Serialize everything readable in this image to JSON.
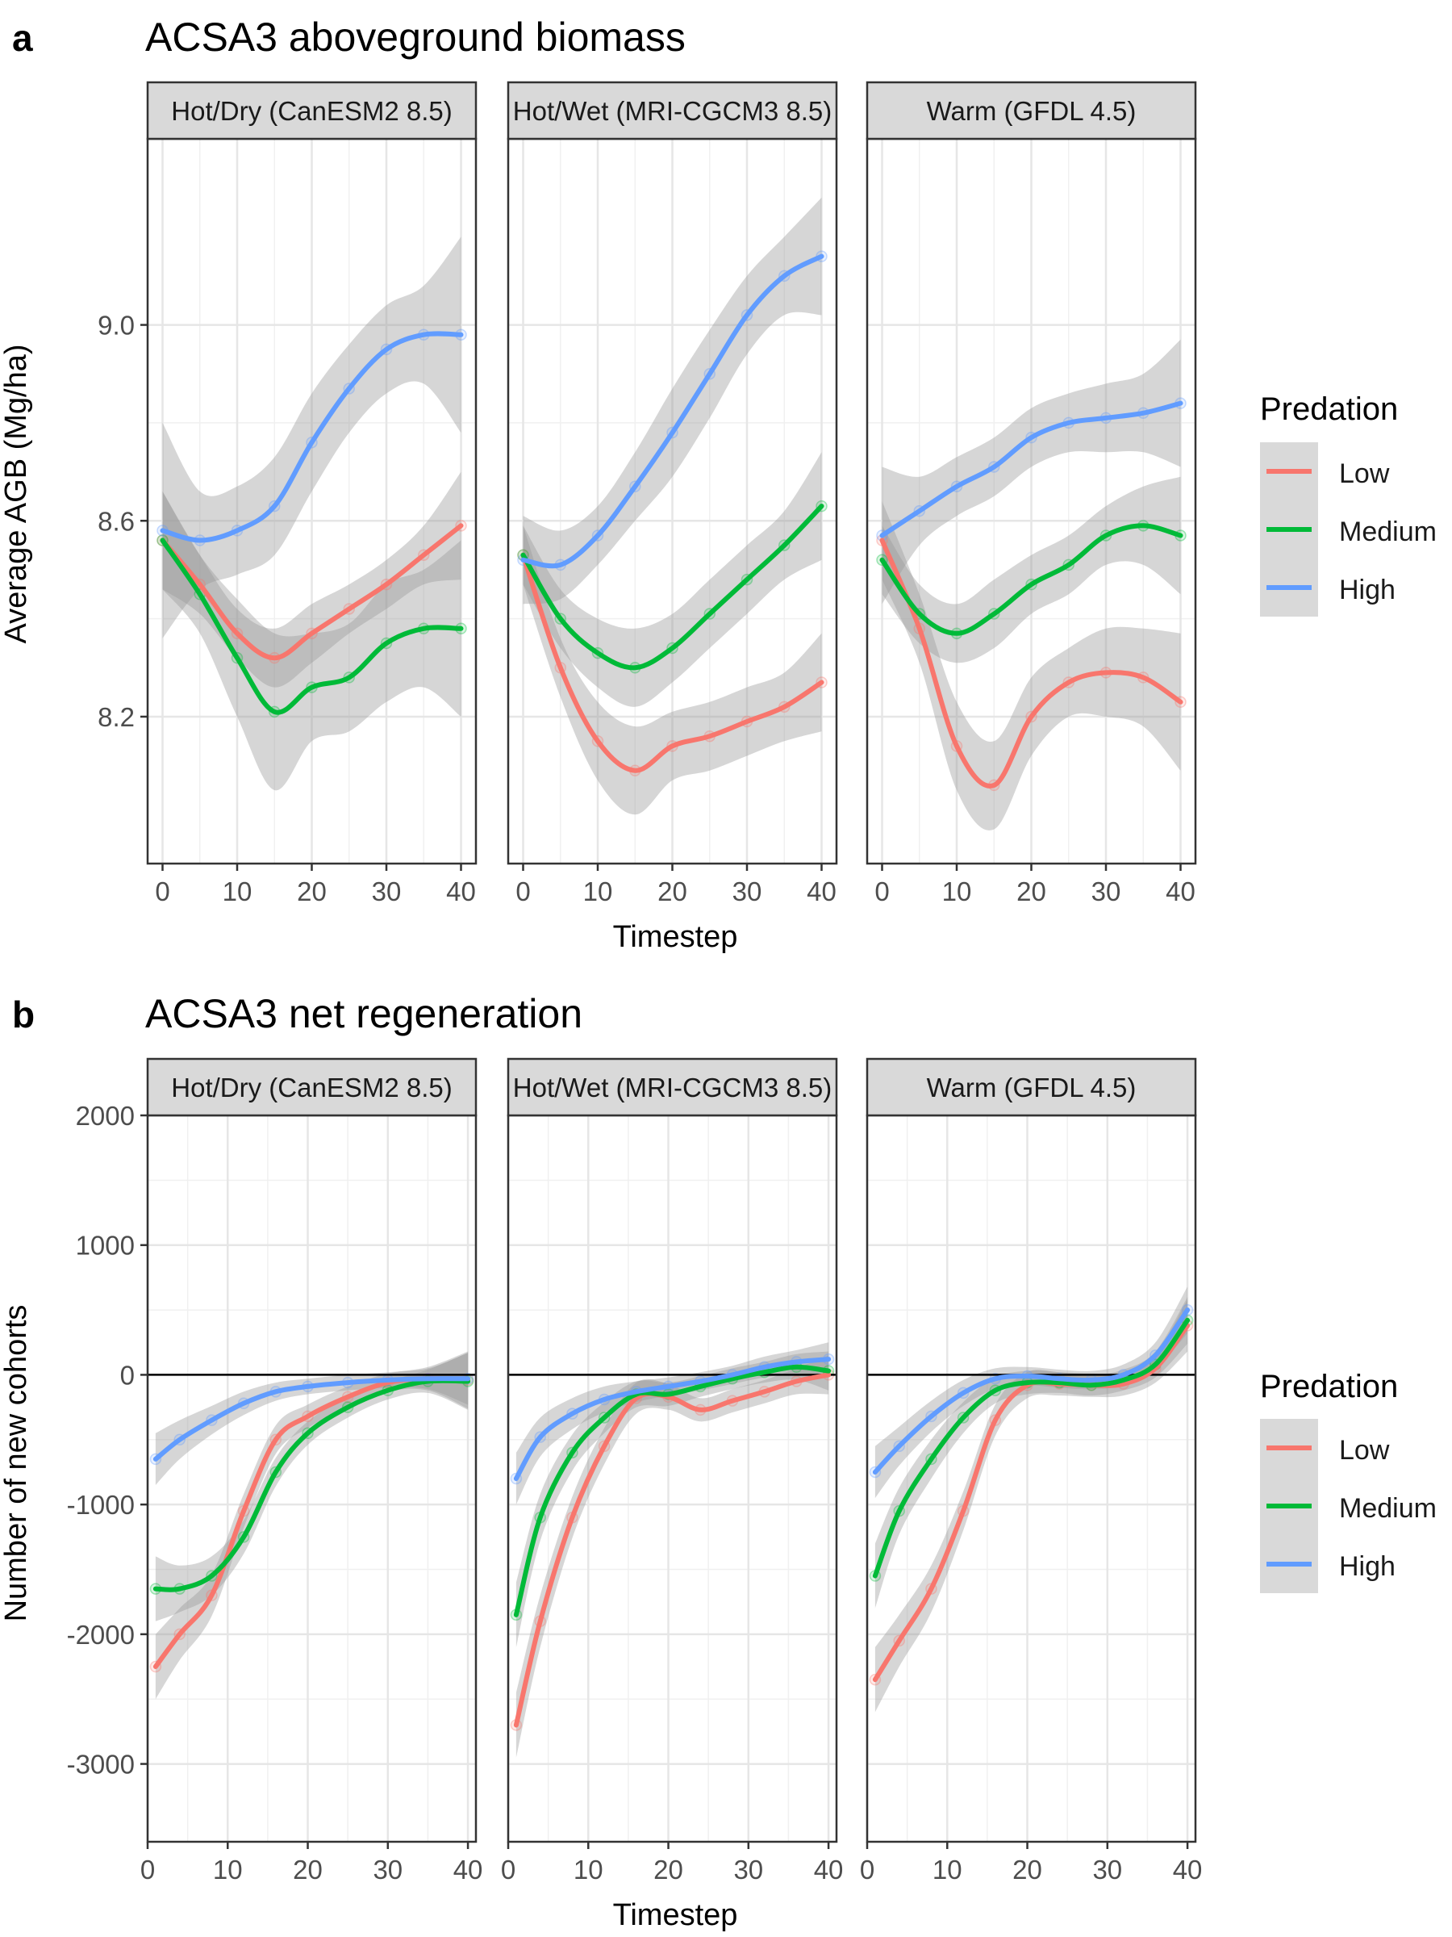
{
  "figure": {
    "panel_a": {
      "letter": "a",
      "title": "ACSA3 aboveground biomass"
    },
    "panel_b": {
      "letter": "b",
      "title": "ACSA3 net regeneration"
    },
    "legend_title": "Predation",
    "series_colors": {
      "Low": "#F8766D",
      "Medium": "#00BA38",
      "High": "#619CFF"
    },
    "ribbon_color": "#999999"
  },
  "chart_data": [
    {
      "type": "line",
      "panel": "a",
      "title": "ACSA3 aboveground biomass",
      "xlabel": "Timestep",
      "ylabel": "Average AGB (Mg/ha)",
      "xlim": [
        -2,
        42
      ],
      "ylim": [
        7.9,
        9.38
      ],
      "xticks": [
        0,
        10,
        20,
        30,
        40
      ],
      "yticks": [
        8.2,
        8.6,
        9.0
      ],
      "ytick_labels": [
        "8.2",
        "8.6",
        "9.0"
      ],
      "zero_line": false,
      "grid": true,
      "legend": {
        "title": "Predation",
        "position": "right",
        "entries": [
          "Low",
          "Medium",
          "High"
        ]
      },
      "facets": [
        {
          "label": "Hot/Dry (CanESM2 8.5)",
          "series": [
            {
              "name": "Low",
              "x": [
                0,
                5,
                10,
                15,
                20,
                25,
                30,
                35,
                40
              ],
              "values": [
                8.56,
                8.47,
                8.37,
                8.32,
                8.37,
                8.42,
                8.47,
                8.53,
                8.59
              ],
              "band": [
                0.1,
                0.06,
                0.05,
                0.06,
                0.06,
                0.05,
                0.05,
                0.06,
                0.11
              ]
            },
            {
              "name": "Medium",
              "x": [
                0,
                5,
                10,
                15,
                20,
                25,
                30,
                35,
                40
              ],
              "values": [
                8.56,
                8.45,
                8.32,
                8.21,
                8.26,
                8.28,
                8.35,
                8.38,
                8.38
              ],
              "band": [
                0.1,
                0.08,
                0.12,
                0.16,
                0.11,
                0.11,
                0.12,
                0.12,
                0.18
              ]
            },
            {
              "name": "High",
              "x": [
                0,
                5,
                10,
                15,
                20,
                25,
                30,
                35,
                40
              ],
              "values": [
                8.58,
                8.56,
                8.58,
                8.63,
                8.76,
                8.87,
                8.95,
                8.98,
                8.98
              ],
              "band": [
                0.22,
                0.1,
                0.09,
                0.1,
                0.1,
                0.09,
                0.09,
                0.1,
                0.2
              ]
            }
          ]
        },
        {
          "label": "Hot/Wet (MRI-CGCM3 8.5)",
          "series": [
            {
              "name": "Low",
              "x": [
                0,
                5,
                10,
                15,
                20,
                25,
                30,
                35,
                40
              ],
              "values": [
                8.53,
                8.3,
                8.15,
                8.09,
                8.14,
                8.16,
                8.19,
                8.22,
                8.27
              ],
              "band": [
                0.06,
                0.06,
                0.08,
                0.09,
                0.07,
                0.07,
                0.07,
                0.07,
                0.1
              ]
            },
            {
              "name": "Medium",
              "x": [
                0,
                5,
                10,
                15,
                20,
                25,
                30,
                35,
                40
              ],
              "values": [
                8.53,
                8.4,
                8.33,
                8.3,
                8.34,
                8.41,
                8.48,
                8.55,
                8.63
              ],
              "band": [
                0.06,
                0.06,
                0.07,
                0.08,
                0.07,
                0.07,
                0.07,
                0.07,
                0.11
              ]
            },
            {
              "name": "High",
              "x": [
                0,
                5,
                10,
                15,
                20,
                25,
                30,
                35,
                40
              ],
              "values": [
                8.52,
                8.51,
                8.57,
                8.67,
                8.78,
                8.9,
                9.02,
                9.1,
                9.14
              ],
              "band": [
                0.09,
                0.07,
                0.06,
                0.07,
                0.09,
                0.09,
                0.08,
                0.08,
                0.12
              ]
            }
          ]
        },
        {
          "label": "Warm (GFDL 4.5)",
          "series": [
            {
              "name": "Low",
              "x": [
                0,
                5,
                10,
                15,
                20,
                25,
                30,
                35,
                40
              ],
              "values": [
                8.56,
                8.38,
                8.14,
                8.06,
                8.2,
                8.27,
                8.29,
                8.28,
                8.23
              ],
              "band": [
                0.08,
                0.07,
                0.09,
                0.09,
                0.08,
                0.07,
                0.09,
                0.1,
                0.14
              ]
            },
            {
              "name": "Medium",
              "x": [
                0,
                5,
                10,
                15,
                20,
                25,
                30,
                35,
                40
              ],
              "values": [
                8.52,
                8.41,
                8.37,
                8.41,
                8.47,
                8.51,
                8.57,
                8.59,
                8.57
              ],
              "band": [
                0.07,
                0.06,
                0.06,
                0.07,
                0.06,
                0.06,
                0.06,
                0.08,
                0.12
              ]
            },
            {
              "name": "High",
              "x": [
                0,
                5,
                10,
                15,
                20,
                25,
                30,
                35,
                40
              ],
              "values": [
                8.57,
                8.62,
                8.67,
                8.71,
                8.77,
                8.8,
                8.81,
                8.82,
                8.84
              ],
              "band": [
                0.14,
                0.07,
                0.06,
                0.06,
                0.06,
                0.06,
                0.07,
                0.08,
                0.13
              ]
            }
          ]
        }
      ]
    },
    {
      "type": "line",
      "panel": "b",
      "title": "ACSA3 net regeneration",
      "xlabel": "Timestep",
      "ylabel": "Number of new cohorts",
      "xlim": [
        0,
        41
      ],
      "ylim": [
        -3600,
        2000
      ],
      "xticks": [
        0,
        10,
        20,
        30,
        40
      ],
      "yticks": [
        -3000,
        -2000,
        -1000,
        0,
        1000,
        2000
      ],
      "ytick_labels": [
        "-3000",
        "-2000",
        "-1000",
        "0",
        "1000",
        "2000"
      ],
      "zero_line": true,
      "grid": true,
      "legend": {
        "title": "Predation",
        "position": "right",
        "entries": [
          "Low",
          "Medium",
          "High"
        ]
      },
      "facets": [
        {
          "label": "Hot/Dry (CanESM2 8.5)",
          "series": [
            {
              "name": "Low",
              "x": [
                1,
                4,
                8,
                12,
                16,
                20,
                25,
                30,
                35,
                40
              ],
              "values": [
                -2250,
                -2000,
                -1700,
                -1050,
                -500,
                -320,
                -170,
                -60,
                -30,
                -40
              ],
              "band": [
                250,
                200,
                160,
                130,
                110,
                90,
                80,
                70,
                90,
                220
              ]
            },
            {
              "name": "Medium",
              "x": [
                1,
                4,
                8,
                12,
                16,
                20,
                25,
                30,
                35,
                40
              ],
              "values": [
                -1650,
                -1650,
                -1550,
                -1250,
                -750,
                -450,
                -250,
                -120,
                -50,
                -50
              ],
              "band": [
                250,
                180,
                150,
                130,
                110,
                90,
                80,
                70,
                90,
                220
              ]
            },
            {
              "name": "High",
              "x": [
                1,
                4,
                8,
                12,
                16,
                20,
                25,
                30,
                35,
                40
              ],
              "values": [
                -650,
                -500,
                -350,
                -220,
                -130,
                -90,
                -60,
                -40,
                -30,
                -30
              ],
              "band": [
                200,
                150,
                110,
                90,
                70,
                60,
                60,
                60,
                80,
                200
              ]
            }
          ]
        },
        {
          "label": "Hot/Wet (MRI-CGCM3 8.5)",
          "series": [
            {
              "name": "Low",
              "x": [
                1,
                4,
                8,
                12,
                16,
                20,
                24,
                28,
                32,
                36,
                40
              ],
              "values": [
                -2700,
                -1900,
                -1100,
                -550,
                -180,
                -170,
                -270,
                -200,
                -130,
                -50,
                0
              ],
              "band": [
                250,
                200,
                160,
                140,
                120,
                100,
                90,
                90,
                90,
                100,
                150
              ]
            },
            {
              "name": "Medium",
              "x": [
                1,
                4,
                8,
                12,
                16,
                20,
                24,
                28,
                32,
                36,
                40
              ],
              "values": [
                -1850,
                -1100,
                -600,
                -330,
                -150,
                -150,
                -90,
                -30,
                20,
                60,
                30
              ],
              "band": [
                250,
                180,
                140,
                120,
                100,
                90,
                80,
                80,
                80,
                100,
                150
              ]
            },
            {
              "name": "High",
              "x": [
                1,
                4,
                8,
                12,
                16,
                20,
                24,
                28,
                32,
                36,
                40
              ],
              "values": [
                -800,
                -480,
                -300,
                -190,
                -130,
                -90,
                -50,
                0,
                60,
                100,
                120
              ],
              "band": [
                200,
                150,
                120,
                100,
                80,
                70,
                70,
                70,
                80,
                90,
                130
              ]
            }
          ]
        },
        {
          "label": "Warm (GFDL 4.5)",
          "series": [
            {
              "name": "Low",
              "x": [
                1,
                4,
                8,
                12,
                16,
                20,
                24,
                28,
                32,
                36,
                40
              ],
              "values": [
                -2350,
                -2050,
                -1650,
                -1050,
                -350,
                -80,
                -70,
                -80,
                -70,
                50,
                380
              ],
              "band": [
                250,
                200,
                180,
                150,
                120,
                100,
                90,
                90,
                90,
                110,
                200
              ]
            },
            {
              "name": "Medium",
              "x": [
                1,
                4,
                8,
                12,
                16,
                20,
                24,
                28,
                32,
                36,
                40
              ],
              "values": [
                -1550,
                -1050,
                -650,
                -330,
                -120,
                -60,
                -60,
                -80,
                -40,
                80,
                420
              ],
              "band": [
                250,
                180,
                150,
                120,
                100,
                90,
                80,
                80,
                80,
                100,
                180
              ]
            },
            {
              "name": "High",
              "x": [
                1,
                4,
                8,
                12,
                16,
                20,
                24,
                28,
                32,
                36,
                40
              ],
              "values": [
                -750,
                -550,
                -320,
                -140,
                -30,
                -10,
                -30,
                -40,
                0,
                150,
                500
              ],
              "band": [
                200,
                150,
                120,
                100,
                80,
                70,
                70,
                70,
                80,
                100,
                180
              ]
            }
          ]
        }
      ]
    }
  ]
}
